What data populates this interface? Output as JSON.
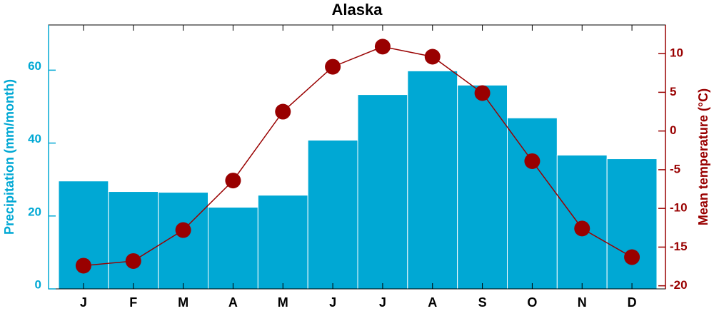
{
  "chart_data": {
    "type": "bar-line",
    "title": "Alaska",
    "categories": [
      "J",
      "F",
      "M",
      "A",
      "M",
      "J",
      "J",
      "A",
      "S",
      "O",
      "N",
      "D"
    ],
    "series": [
      {
        "name": "Precipitation (mm/month)",
        "type": "bar",
        "color": "#00a8d4",
        "axis": "y",
        "values": [
          29.6,
          26.7,
          26.5,
          22.4,
          25.7,
          40.8,
          53.3,
          59.8,
          55.9,
          46.9,
          36.7,
          35.7
        ]
      },
      {
        "name": "Mean temperature (°C)",
        "type": "line",
        "color": "#990000",
        "axis": "y2",
        "values": [
          -17.4,
          -16.8,
          -12.8,
          -6.4,
          2.5,
          8.3,
          10.9,
          9.6,
          4.9,
          -3.9,
          -12.6,
          -16.3
        ]
      }
    ],
    "ylim": [
      0,
      72.4
    ],
    "yticks": [
      0,
      20,
      40,
      60
    ],
    "y2lim": [
      -20.4,
      13.7
    ],
    "y2ticks": [
      -20,
      -15,
      -10,
      -5,
      0,
      5,
      10
    ]
  }
}
